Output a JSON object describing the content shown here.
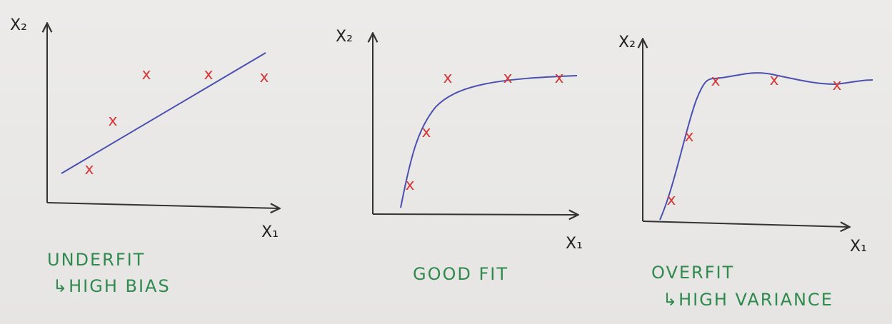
{
  "colors": {
    "axis": "#333333",
    "curve": "#4a4fb0",
    "points": "#d43a3a",
    "caption": "#2f8a4e"
  },
  "point_marker": "x",
  "panels": [
    {
      "axis_labels": {
        "x": "X₁",
        "y": "X₂"
      },
      "caption_lines": [
        "UNDERFIT",
        "↳HIGH BIAS"
      ],
      "points": [
        [
          0.15,
          0.18
        ],
        [
          0.25,
          0.43
        ],
        [
          0.43,
          0.75
        ],
        [
          0.7,
          0.75
        ],
        [
          0.92,
          0.73
        ]
      ],
      "curve_type": "linear"
    },
    {
      "axis_labels": {
        "x": "X₁",
        "y": "X₂"
      },
      "caption_lines": [
        "GOOD FIT"
      ],
      "points": [
        [
          0.18,
          0.17
        ],
        [
          0.25,
          0.52
        ],
        [
          0.37,
          0.8
        ],
        [
          0.65,
          0.8
        ],
        [
          0.93,
          0.8
        ]
      ],
      "curve_type": "smooth"
    },
    {
      "axis_labels": {
        "x": "X₁",
        "y": "X₂"
      },
      "caption_lines": [
        "OVERFIT",
        "↳HIGH VARIANCE"
      ],
      "points": [
        [
          0.12,
          0.1
        ],
        [
          0.23,
          0.42
        ],
        [
          0.37,
          0.73
        ],
        [
          0.62,
          0.73
        ],
        [
          0.88,
          0.71
        ]
      ],
      "curve_type": "wiggly"
    }
  ]
}
